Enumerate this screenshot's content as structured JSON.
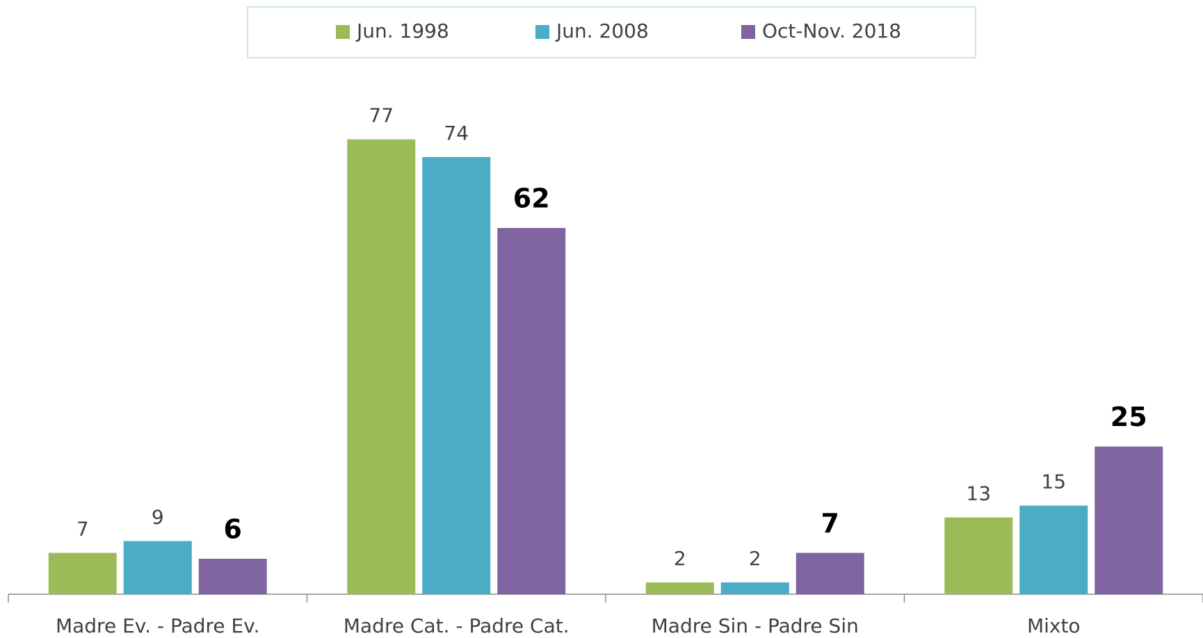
{
  "chart_data": {
    "type": "bar",
    "categories": [
      "Madre Ev. - Padre Ev.",
      "Madre Cat. - Padre Cat.",
      "Madre Sin - Padre Sin",
      "Mixto"
    ],
    "series": [
      {
        "name": "Jun. 1998",
        "color": "#9bbb59",
        "values": [
          7,
          77,
          2,
          13
        ]
      },
      {
        "name": "Jun. 2008",
        "color": "#4bacc6",
        "values": [
          9,
          74,
          2,
          15
        ]
      },
      {
        "name": "Oct-Nov. 2018",
        "color": "#8064a2",
        "values": [
          6,
          62,
          7,
          25
        ]
      }
    ],
    "ylim": [
      0,
      90
    ],
    "legend": "top"
  }
}
